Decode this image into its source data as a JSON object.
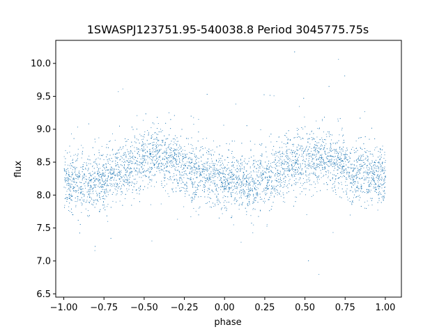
{
  "chart_data": {
    "type": "scatter",
    "title": "1SWASPJ123751.95-540038.8 Period 3045775.75s",
    "xlabel": "phase",
    "ylabel": "flux",
    "xlim": [
      -1.05,
      1.1
    ],
    "ylim": [
      6.45,
      10.35
    ],
    "xticks": [
      -1.0,
      -0.75,
      -0.5,
      -0.25,
      0.0,
      0.25,
      0.5,
      0.75,
      1.0
    ],
    "xtick_labels": [
      "−1.00",
      "−0.75",
      "−0.50",
      "−0.25",
      "0.00",
      "0.25",
      "0.50",
      "0.75",
      "1.00"
    ],
    "yticks": [
      6.5,
      7.0,
      7.5,
      8.0,
      8.5,
      9.0,
      9.5,
      10.0
    ],
    "ytick_labels": [
      "6.5",
      "7.0",
      "7.5",
      "8.0",
      "8.5",
      "9.0",
      "9.5",
      "10.0"
    ],
    "grid": false,
    "marker_color": "#1f77b4",
    "phase_range": [
      -1.0,
      1.0
    ],
    "folded_curve": {
      "description_points": [
        {
          "phase": -1.0,
          "flux": 8.25
        },
        {
          "phase": -0.85,
          "flux": 8.15
        },
        {
          "phase": -0.75,
          "flux": 8.25
        },
        {
          "phase": -0.6,
          "flux": 8.45
        },
        {
          "phase": -0.5,
          "flux": 8.55
        },
        {
          "phase": -0.4,
          "flux": 8.6
        },
        {
          "phase": -0.3,
          "flux": 8.5
        },
        {
          "phase": -0.2,
          "flux": 8.35
        },
        {
          "phase": -0.1,
          "flux": 8.3
        },
        {
          "phase": 0.0,
          "flux": 8.25
        },
        {
          "phase": 0.15,
          "flux": 8.15
        },
        {
          "phase": 0.25,
          "flux": 8.25
        },
        {
          "phase": 0.4,
          "flux": 8.45
        },
        {
          "phase": 0.5,
          "flux": 8.55
        },
        {
          "phase": 0.6,
          "flux": 8.6
        },
        {
          "phase": 0.7,
          "flux": 8.5
        },
        {
          "phase": 0.8,
          "flux": 8.35
        },
        {
          "phase": 0.9,
          "flux": 8.3
        },
        {
          "phase": 1.0,
          "flux": 8.25
        }
      ],
      "scatter_sigma": 0.22
    }
  }
}
